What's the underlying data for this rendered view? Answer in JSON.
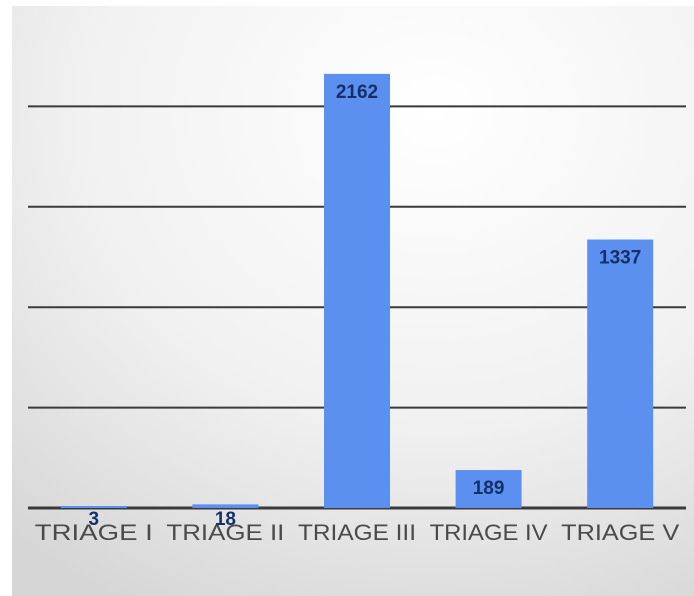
{
  "chart_data": {
    "type": "bar",
    "categories": [
      "TRIAGE I",
      "TRIAGE II",
      "TRIAGE III",
      "TRIAGE IV",
      "TRIAGE V"
    ],
    "values": [
      3,
      18,
      2162,
      189,
      1337
    ],
    "data_labels": [
      "3",
      "18",
      "2162",
      "189",
      "1337"
    ],
    "title": "",
    "xlabel": "",
    "ylabel": "",
    "ylim": [
      0,
      2500
    ],
    "grid": true,
    "legend": "none",
    "colors": {
      "bar": "#5b8ff0",
      "bar_top": "#4a7fe6",
      "gridline": "#3a3a3a",
      "data_label": "#14306b",
      "tick_label": "#4a4a4a",
      "background_light": "#ffffff",
      "background_dark": "#dcdcdc"
    }
  }
}
